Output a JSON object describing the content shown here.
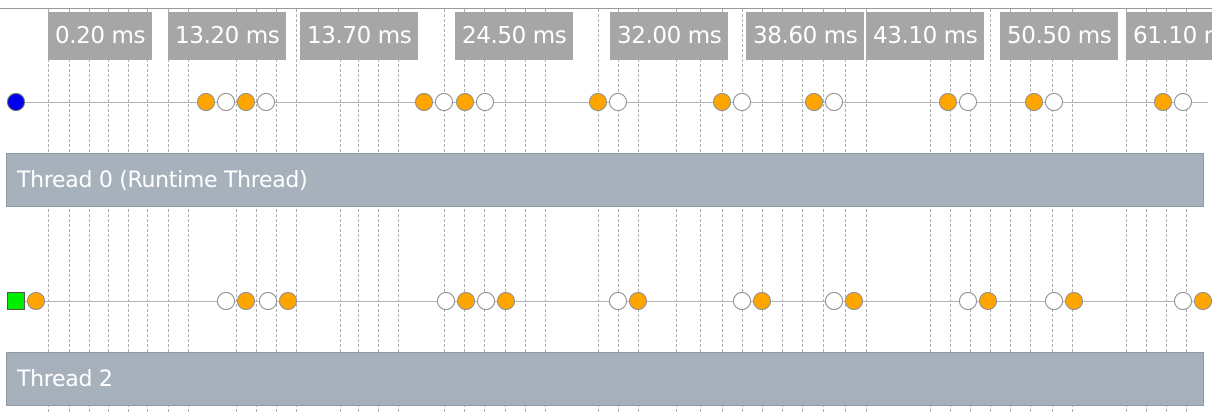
{
  "colors": {
    "marker_filled": "#ffa500",
    "marker_hollow": "#ffffff",
    "thread0_start": "#0000ee",
    "thread2_start": "#00ee00"
  },
  "timeline": {
    "time_labels": [
      "0.20 ms",
      "13.20 ms",
      "13.70 ms",
      "24.50 ms",
      "32.00 ms",
      "38.60 ms",
      "43.10 ms",
      "50.50 ms",
      "61.10 ms"
    ]
  },
  "threads": [
    {
      "name": "Thread 0 (Runtime Thread)",
      "start_marker": "circle",
      "markers": [
        "filled",
        "hollow",
        "filled",
        "hollow",
        "filled",
        "hollow",
        "filled",
        "hollow",
        "filled",
        "hollow",
        "filled",
        "hollow",
        "filled",
        "hollow",
        "filled",
        "hollow",
        "filled",
        "hollow",
        "filled",
        "hollow"
      ]
    },
    {
      "name": "Thread 2",
      "start_marker": "square",
      "markers": [
        "filled",
        "hollow",
        "filled",
        "hollow",
        "filled",
        "hollow",
        "filled",
        "hollow",
        "filled",
        "hollow",
        "filled",
        "hollow",
        "filled",
        "hollow",
        "filled",
        "hollow",
        "filled",
        "hollow",
        "filled",
        "hollow",
        "filled",
        "hollow"
      ]
    }
  ]
}
